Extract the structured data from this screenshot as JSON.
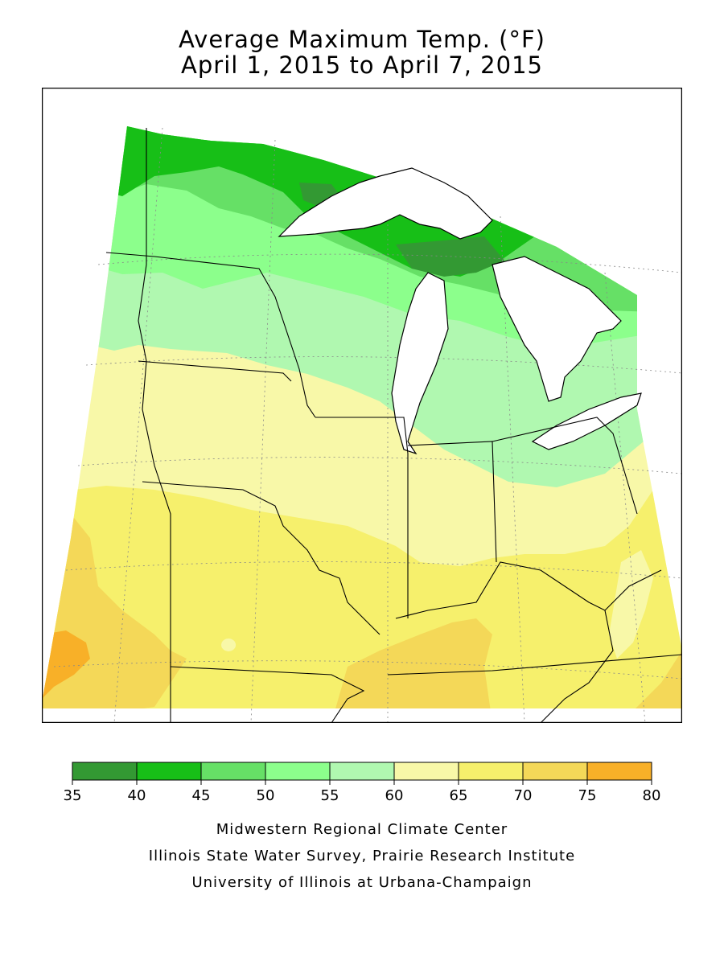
{
  "title": {
    "line1": "Average Maximum Temp. (°F)",
    "line2": "April 1, 2015 to April 7, 2015"
  },
  "legend": {
    "ticks": [
      "35",
      "40",
      "45",
      "50",
      "55",
      "60",
      "65",
      "70",
      "75",
      "80"
    ],
    "bins": [
      {
        "min": 35,
        "max": 40,
        "color": "#339933"
      },
      {
        "min": 40,
        "max": 45,
        "color": "#17bf17"
      },
      {
        "min": 45,
        "max": 50,
        "color": "#66e066"
      },
      {
        "min": 50,
        "max": 55,
        "color": "#8cff8c"
      },
      {
        "min": 55,
        "max": 60,
        "color": "#b0f8b0"
      },
      {
        "min": 60,
        "max": 65,
        "color": "#f8f8a8"
      },
      {
        "min": 65,
        "max": 70,
        "color": "#f6f06c"
      },
      {
        "min": 70,
        "max": 75,
        "color": "#f4d858"
      },
      {
        "min": 75,
        "max": 80,
        "color": "#f8b028"
      }
    ]
  },
  "map": {
    "units": "°F",
    "water_color": "#ffffff",
    "boundary_color": "#000000",
    "grid_style": "dotted"
  },
  "credits": [
    "Midwestern Regional Climate Center",
    "Illinois State Water Survey, Prairie Research Institute",
    "University of Illinois at Urbana-Champaign"
  ]
}
